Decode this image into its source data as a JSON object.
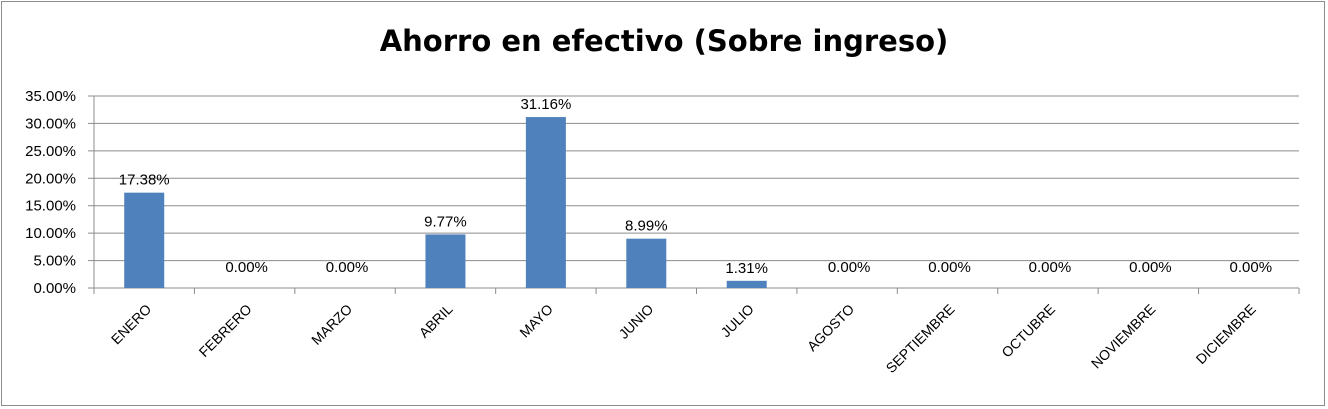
{
  "chart_data": {
    "type": "bar",
    "title": "Ahorro en efectivo (Sobre ingreso)",
    "categories": [
      "ENERO",
      "FEBRERO",
      "MARZO",
      "ABRIL",
      "MAYO",
      "JUNIO",
      "JULIO",
      "AGOSTO",
      "SEPTIEMBRE",
      "OCTUBRE",
      "NOVIEMBRE",
      "DICIEMBRE"
    ],
    "values": [
      17.38,
      0.0,
      0.0,
      9.77,
      31.16,
      8.99,
      1.31,
      0.0,
      0.0,
      0.0,
      0.0,
      0.0
    ],
    "data_labels": [
      "17.38%",
      "0.00%",
      "0.00%",
      "9.77%",
      "31.16%",
      "8.99%",
      "1.31%",
      "0.00%",
      "0.00%",
      "0.00%",
      "0.00%",
      "0.00%"
    ],
    "y_ticks": [
      "0.00%",
      "5.00%",
      "10.00%",
      "15.00%",
      "20.00%",
      "25.00%",
      "30.00%",
      "35.00%"
    ],
    "ylim": [
      0,
      35
    ],
    "grid": true,
    "bar_color": "#4f81bd",
    "grid_color": "#8c8c8c"
  }
}
